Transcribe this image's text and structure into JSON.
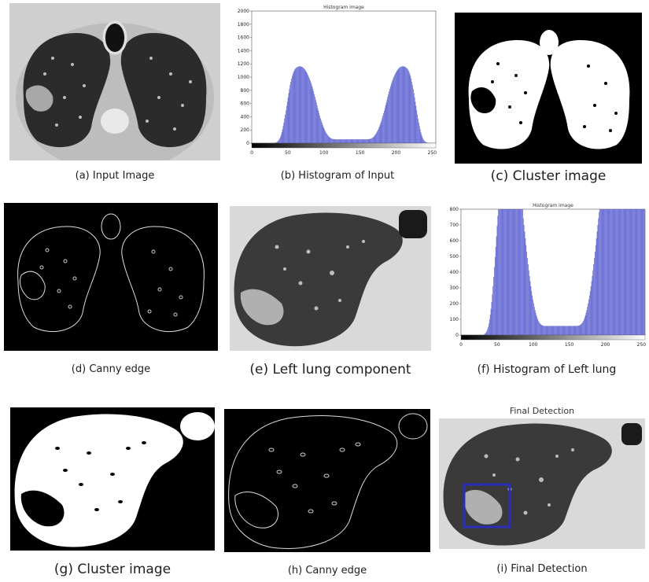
{
  "figure": {
    "captions": {
      "a": "(a) Input Image",
      "b": "(b) Histogram of Input",
      "c": "(c) Cluster image",
      "d": "(d) Canny edge",
      "e": "(e) Left lung component",
      "f": "(f) Histogram of Left lung",
      "g": "(g) Cluster image",
      "h": "(h) Canny edge",
      "i": "(i) Final Detection"
    },
    "panel_i_title": "Final Detection",
    "detection_box_color": "#2b2fb8"
  },
  "chart_data": [
    {
      "type": "bar",
      "title": "Histogram image",
      "x_ticks": [
        "0",
        "50",
        "100",
        "150",
        "200",
        "250"
      ],
      "y_ticks": [
        "0",
        "200",
        "400",
        "600",
        "800",
        "1000",
        "1200",
        "1400",
        "1600",
        "1800",
        "2000"
      ],
      "xlim": [
        0,
        255
      ],
      "ylim": [
        0,
        2000
      ],
      "bar_color": "#5a5fd0",
      "values": [
        0,
        0,
        0,
        0,
        0,
        0,
        0,
        0,
        0,
        0,
        0,
        0,
        0,
        0,
        0,
        0,
        0,
        0,
        0,
        0,
        0,
        0,
        0,
        0,
        0,
        0,
        0,
        0,
        0,
        0,
        0,
        0,
        2,
        4,
        7,
        11,
        17,
        25,
        37,
        52,
        73,
        98,
        129,
        166,
        209,
        258,
        312,
        370,
        432,
        496,
        562,
        628,
        694,
        758,
        820,
        878,
        930,
        976,
        1016,
        1050,
        1078,
        1100,
        1118,
        1132,
        1142,
        1150,
        1156,
        1160,
        1162,
        1163,
        1162,
        1160,
        1156,
        1150,
        1142,
        1132,
        1120,
        1106,
        1090,
        1072,
        1052,
        1030,
        1006,
        980,
        952,
        922,
        890,
        856,
        820,
        782,
        742,
        700,
        658,
        615,
        572,
        530,
        490,
        450,
        412,
        376,
        342,
        310,
        280,
        252,
        226,
        202,
        180,
        160,
        142,
        126,
        112,
        100,
        90,
        82,
        75,
        70,
        66,
        63,
        61,
        60,
        59,
        58,
        58,
        58,
        58,
        58,
        58,
        58,
        58,
        58,
        58,
        58,
        58,
        58,
        58,
        58,
        58,
        58,
        58,
        58,
        58,
        58,
        58,
        58,
        58,
        58,
        58,
        58,
        58,
        58,
        58,
        58,
        58,
        58,
        58,
        58,
        58,
        58,
        58,
        58,
        58,
        58,
        58,
        58,
        58,
        58,
        58,
        59,
        60,
        61,
        63,
        66,
        70,
        75,
        82,
        90,
        100,
        112,
        126,
        142,
        160,
        180,
        202,
        226,
        252,
        280,
        310,
        342,
        376,
        412,
        450,
        490,
        530,
        572,
        615,
        658,
        700,
        742,
        782,
        820,
        856,
        890,
        922,
        952,
        980,
        1006,
        1030,
        1052,
        1072,
        1090,
        1106,
        1120,
        1132,
        1142,
        1150,
        1156,
        1160,
        1162,
        1163,
        1162,
        1160,
        1156,
        1150,
        1142,
        1132,
        1118,
        1100,
        1078,
        1050,
        1016,
        976,
        930,
        878,
        820,
        758,
        694,
        628,
        562,
        496,
        432,
        370,
        312,
        258,
        209,
        166,
        129,
        98,
        73,
        52,
        37,
        25,
        17,
        11,
        7,
        4,
        2,
        0,
        0,
        0,
        0,
        0,
        0,
        0,
        0,
        0,
        0
      ]
    },
    {
      "type": "bar",
      "title": "Histogram image",
      "x_ticks": [
        "0",
        "50",
        "100",
        "150",
        "200",
        "250"
      ],
      "y_ticks": [
        "0",
        "100",
        "200",
        "300",
        "400",
        "500",
        "600",
        "700",
        "800"
      ],
      "xlim": [
        0,
        255
      ],
      "ylim": [
        0,
        800
      ],
      "bar_color": "#5a5fd0",
      "values": [
        0,
        0,
        0,
        0,
        0,
        0,
        0,
        0,
        0,
        0,
        0,
        0,
        0,
        0,
        0,
        0,
        0,
        0,
        0,
        0,
        0,
        0,
        0,
        0,
        0,
        0,
        0,
        0,
        0,
        0,
        0,
        0,
        2,
        4,
        7,
        11,
        17,
        25,
        37,
        52,
        73,
        98,
        129,
        166,
        209,
        258,
        312,
        370,
        432,
        496,
        562,
        628,
        694,
        758,
        800,
        800,
        800,
        800,
        800,
        800,
        800,
        800,
        800,
        800,
        800,
        800,
        800,
        800,
        800,
        800,
        800,
        800,
        800,
        800,
        800,
        800,
        800,
        800,
        800,
        800,
        800,
        800,
        800,
        800,
        800,
        800,
        800,
        800,
        800,
        800,
        742,
        700,
        658,
        615,
        572,
        530,
        490,
        450,
        412,
        376,
        342,
        310,
        280,
        252,
        226,
        202,
        180,
        160,
        142,
        126,
        112,
        100,
        90,
        82,
        75,
        70,
        66,
        63,
        61,
        60,
        59,
        58,
        58,
        58,
        58,
        58,
        58,
        58,
        58,
        58,
        58,
        58,
        58,
        58,
        58,
        58,
        58,
        58,
        58,
        58,
        58,
        58,
        58,
        58,
        58,
        58,
        58,
        58,
        58,
        58,
        58,
        58,
        58,
        58,
        58,
        58,
        58,
        58,
        58,
        58,
        58,
        58,
        58,
        58,
        58,
        58,
        58,
        58,
        58,
        59,
        60,
        61,
        63,
        66,
        70,
        75,
        82,
        90,
        100,
        112,
        126,
        142,
        160,
        180,
        202,
        226,
        252,
        280,
        310,
        342,
        376,
        412,
        450,
        490,
        530,
        572,
        615,
        658,
        700,
        742,
        782,
        800,
        800,
        800,
        800,
        800,
        800,
        800,
        800,
        800,
        800,
        800,
        800,
        800,
        800,
        800,
        800,
        800,
        800,
        800,
        800,
        800,
        800,
        800,
        800,
        800,
        800,
        800,
        800,
        800,
        800,
        800,
        800,
        800,
        800,
        800,
        800,
        800,
        800,
        800,
        800,
        800,
        800,
        800,
        800,
        800,
        800,
        800,
        800,
        800,
        800,
        800,
        800,
        800,
        800,
        800,
        800,
        800,
        800,
        800,
        800,
        800,
        800,
        800,
        800,
        800,
        800
      ]
    }
  ]
}
